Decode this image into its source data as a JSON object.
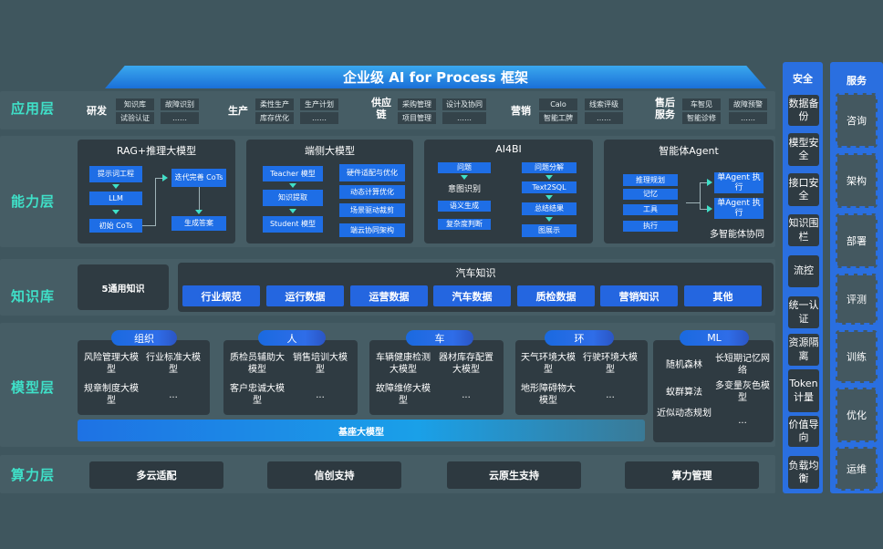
{
  "title": "企业级 AI for Process 框架",
  "layers": {
    "app": "应用层",
    "capability": "能力层",
    "knowledge": "知识库",
    "model": "模型层",
    "compute": "算力层"
  },
  "app_groups": [
    {
      "label": "研发",
      "items": [
        "知识库",
        "故障识别",
        "试验认证",
        "……"
      ]
    },
    {
      "label": "生产",
      "items": [
        "柔性生产",
        "生产计划",
        "库存优化",
        "……"
      ]
    },
    {
      "label": "供应链",
      "items": [
        "采购管理",
        "设计及协同",
        "项目管理",
        "……"
      ]
    },
    {
      "label": "营销",
      "items": [
        "Calo",
        "线索评级",
        "智能工牌",
        "……"
      ]
    },
    {
      "label": "售后服务",
      "items": [
        "车智见",
        "故障预警",
        "智能诊修",
        "……"
      ]
    }
  ],
  "capability": {
    "rag": {
      "title": "RAG+推理大模型",
      "items": [
        "提示词工程",
        "LLM",
        "初始 CoTs",
        "迭代完善 CoTs",
        "生成答案"
      ]
    },
    "edge": {
      "title": "端侧大模型",
      "left": [
        "Teacher 模型",
        "知识提取",
        "Student 模型"
      ],
      "right": [
        "硬件适配与优化",
        "动态计算优化",
        "场景驱动裁剪",
        "端云协同架构"
      ]
    },
    "ai4bi": {
      "title": "AI4BI",
      "left": [
        "问题",
        "意图识别",
        "语义生成",
        "复杂度判断"
      ],
      "right": [
        "问题分解",
        "Text2SQL",
        "总结结果",
        "图展示"
      ]
    },
    "agent": {
      "title": "智能体Agent",
      "left": [
        "推理规划",
        "记忆",
        "工具",
        "执行"
      ],
      "right": [
        "单Agent 执行",
        "单Agent 执行"
      ],
      "footer": "多智能体协同"
    }
  },
  "knowledge": {
    "general": "5通用知识",
    "auto_title": "汽车知识",
    "auto_items": [
      "行业规范",
      "运行数据",
      "运营数据",
      "汽车数据",
      "质检数据",
      "营销知识",
      "其他"
    ]
  },
  "models": [
    {
      "label": "组织",
      "items": [
        "风险管理大模型",
        "行业标准大模型",
        "规章制度大模型",
        "..."
      ]
    },
    {
      "label": "人",
      "items": [
        "质检员辅助大模型",
        "销售培训大模型",
        "客户忠诚大模型",
        "..."
      ]
    },
    {
      "label": "车",
      "items": [
        "车辆健康检测大模型",
        "器材库存配置大模型",
        "故障维修大模型",
        "..."
      ]
    },
    {
      "label": "环",
      "items": [
        "天气环境大模型",
        "行驶环境大模型",
        "地形障碍物大模型",
        "..."
      ]
    },
    {
      "label": "ML",
      "items": [
        "随机森林",
        "长短期记忆网络",
        "蚁群算法",
        "多变量灰色模型",
        "近似动态规划",
        "..."
      ]
    }
  ],
  "base_model": "基座大模型",
  "compute": [
    "多云适配",
    "信创支持",
    "云原生支持",
    "算力管理"
  ],
  "security": {
    "title": "安全",
    "items": [
      "数据备份",
      "模型安全",
      "接口安全",
      "知识围栏",
      "流控",
      "统一认证",
      "资源隔离",
      "Token计量",
      "价值导向",
      "负载均衡"
    ]
  },
  "services": {
    "title": "服务",
    "items": [
      "咨询",
      "架构",
      "部署",
      "评测",
      "训练",
      "优化",
      "运维"
    ]
  },
  "colors": {
    "accent": "#3fe0c8",
    "blue": "#1e6ee6",
    "background": "#3f565e"
  }
}
